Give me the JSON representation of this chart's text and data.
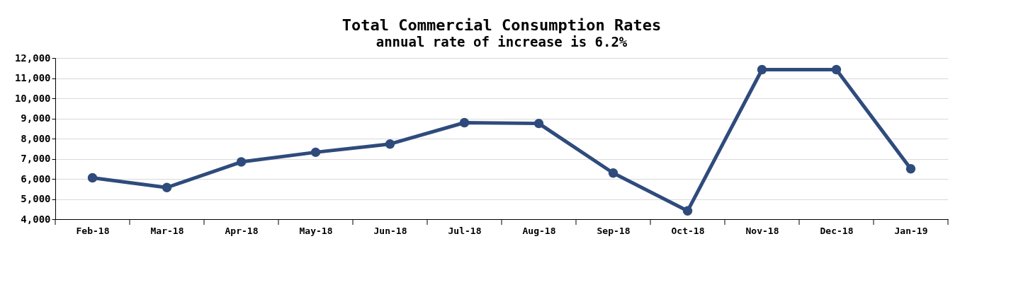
{
  "chart_data": {
    "type": "line",
    "title": "Total Commercial Consumption Rates",
    "subtitle": "annual rate of increase is 6.2%",
    "categories": [
      "Feb-18",
      "Mar-18",
      "Apr-18",
      "May-18",
      "Jun-18",
      "Jul-18",
      "Aug-18",
      "Sep-18",
      "Oct-18",
      "Nov-18",
      "Dec-18",
      "Jan-19"
    ],
    "series": [
      {
        "color": "#2f4b7c",
        "values": [
          6050,
          5570,
          6840,
          7320,
          7730,
          8790,
          8750,
          6290,
          4410,
          11420,
          11420,
          6500
        ]
      }
    ],
    "ylim": [
      4000,
      12000
    ],
    "yticks": [
      {
        "value": 4000,
        "label": "4,000"
      },
      {
        "value": 5000,
        "label": "5,000"
      },
      {
        "value": 6000,
        "label": "6,000"
      },
      {
        "value": 7000,
        "label": "7,000"
      },
      {
        "value": 8000,
        "label": "8,000"
      },
      {
        "value": 9000,
        "label": "9,000"
      },
      {
        "value": 10000,
        "label": "10,000"
      },
      {
        "value": 11000,
        "label": "11,000"
      },
      {
        "value": 12000,
        "label": "12,000"
      }
    ],
    "grid": "y",
    "marker": "circle",
    "line_style": "solid"
  }
}
